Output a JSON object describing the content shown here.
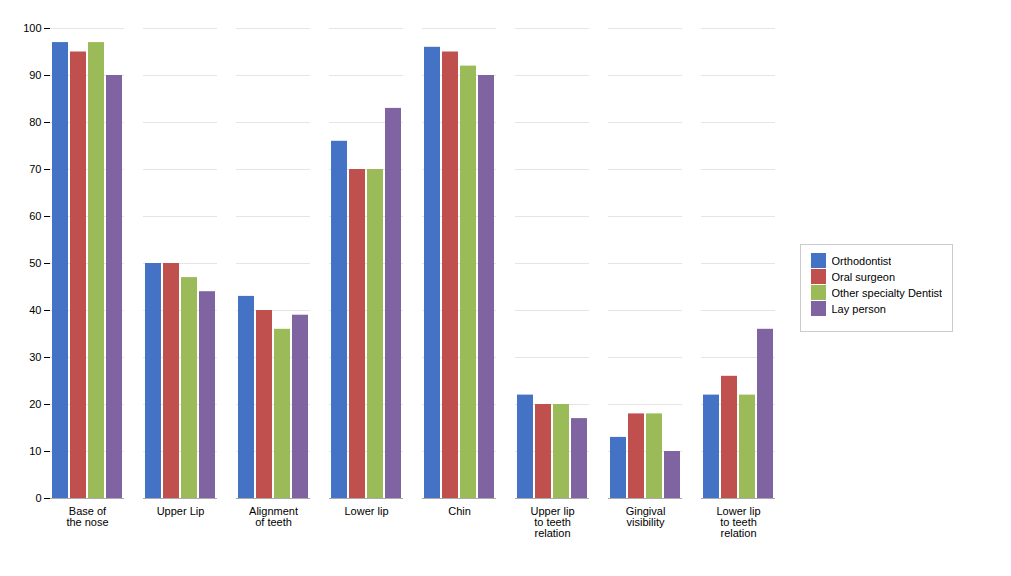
{
  "chart_data": {
    "type": "bar",
    "categories": [
      "Base of\nthe nose",
      "Upper Lip",
      "Alignment\nof teeth",
      "Lower lip",
      "Chin",
      "Upper lip\nto teeth\nrelation",
      "Gingival\nvisibility",
      "Lower lip\nto teeth\nrelation"
    ],
    "series": [
      {
        "name": "Orthodontist",
        "color": "#4472C4",
        "values": [
          97,
          50,
          43,
          76,
          96,
          22,
          13,
          22
        ]
      },
      {
        "name": "Oral surgeon",
        "color": "#C0504D",
        "values": [
          95,
          50,
          40,
          70,
          95,
          20,
          18,
          26
        ]
      },
      {
        "name": "Other specialty Dentist",
        "color": "#9BBB59",
        "values": [
          97,
          47,
          36,
          70,
          92,
          20,
          18,
          22
        ]
      },
      {
        "name": "Lay person",
        "color": "#8064A2",
        "values": [
          90,
          44,
          39,
          83,
          90,
          17,
          10,
          36
        ]
      }
    ],
    "ylim": [
      0,
      100
    ],
    "yticks": [
      0,
      10,
      20,
      30,
      40,
      50,
      60,
      70,
      80,
      90,
      100
    ],
    "grid": true,
    "legend": "right"
  }
}
